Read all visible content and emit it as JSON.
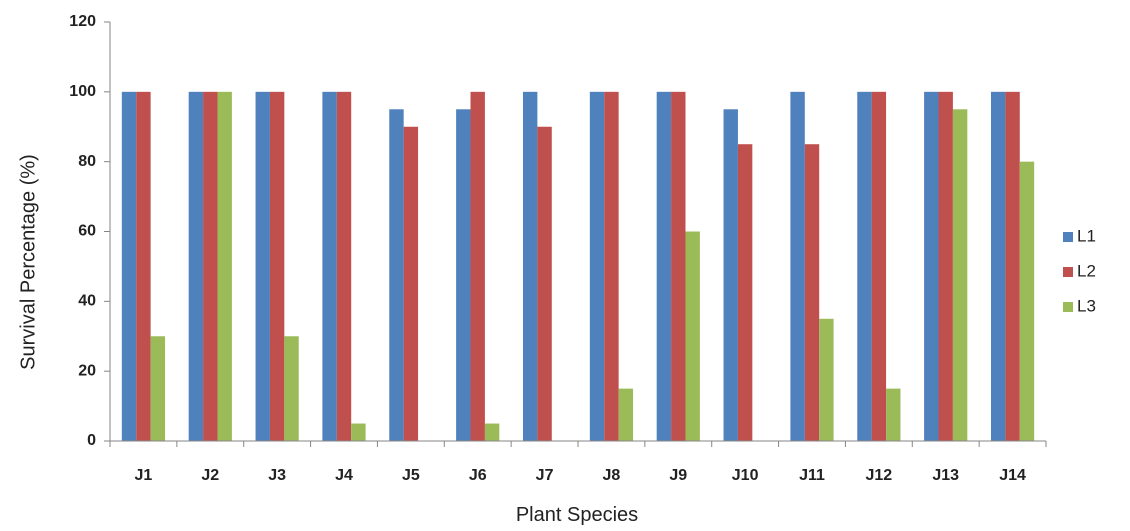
{
  "chart_data": {
    "type": "bar",
    "title": "",
    "xlabel": "Plant Species",
    "ylabel": "Survival Percentage (%)",
    "ylim": [
      0,
      120
    ],
    "yticks": [
      0,
      20,
      40,
      60,
      80,
      100,
      120
    ],
    "grid": false,
    "legend_position": "right",
    "categories": [
      "J1",
      "J2",
      "J3",
      "J4",
      "J5",
      "J6",
      "J7",
      "J8",
      "J9",
      "J10",
      "J11",
      "J12",
      "J13",
      "J14"
    ],
    "series": [
      {
        "name": "L1",
        "color": "#4F81BD",
        "values": [
          100,
          100,
          100,
          100,
          95,
          95,
          100,
          100,
          100,
          95,
          100,
          100,
          100,
          100
        ]
      },
      {
        "name": "L2",
        "color": "#C0504D",
        "values": [
          100,
          100,
          100,
          100,
          90,
          100,
          90,
          100,
          100,
          85,
          85,
          100,
          100,
          100
        ]
      },
      {
        "name": "L3",
        "color": "#9BBB59",
        "values": [
          30,
          100,
          30,
          5,
          0,
          5,
          0,
          15,
          60,
          0,
          35,
          15,
          95,
          80
        ]
      }
    ]
  }
}
